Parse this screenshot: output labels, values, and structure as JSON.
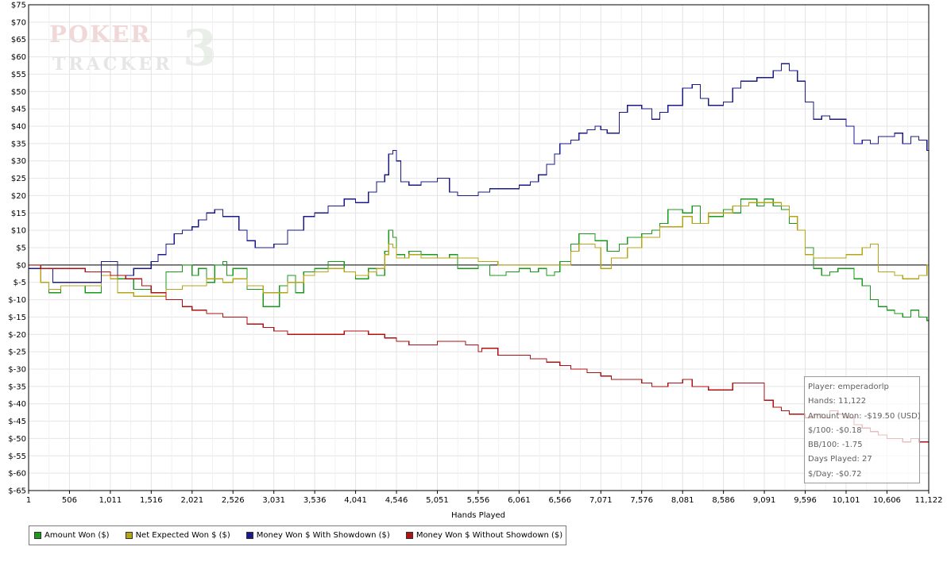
{
  "logo": {
    "word_top": "POKER",
    "word_bottom": "TRACKER",
    "numeral": "3"
  },
  "chart_data": {
    "type": "line",
    "xlabel": "Hands Played",
    "ylabel": "",
    "xlim": [
      1,
      11122
    ],
    "ylim": [
      -65,
      75
    ],
    "y_ticks": [
      75,
      70,
      65,
      60,
      55,
      50,
      45,
      40,
      35,
      30,
      25,
      20,
      15,
      10,
      5,
      0,
      -5,
      -10,
      -15,
      -20,
      -25,
      -30,
      -35,
      -40,
      -45,
      -50,
      -55,
      -60,
      -65
    ],
    "x_ticks": [
      1,
      506,
      1011,
      1516,
      2021,
      2526,
      3031,
      3536,
      4041,
      4546,
      5051,
      5556,
      6061,
      6566,
      7071,
      7576,
      8081,
      8586,
      9091,
      9596,
      10101,
      10606,
      11122
    ],
    "x_tick_labels": [
      "1",
      "506",
      "1,011",
      "1,516",
      "2,021",
      "2,526",
      "3,031",
      "3,536",
      "4,041",
      "4,546",
      "5,051",
      "5,556",
      "6,061",
      "6,566",
      "7,071",
      "7,576",
      "8,081",
      "8,586",
      "9,091",
      "9,596",
      "10,101",
      "10,606",
      "11,122"
    ],
    "grid": true,
    "legend_position": "bottom-left",
    "series": [
      {
        "name": "Amount Won ($)",
        "color": "#1a9a1a",
        "x": [
          1,
          150,
          250,
          400,
          600,
          700,
          900,
          1011,
          1100,
          1300,
          1516,
          1700,
          1900,
          2021,
          2100,
          2200,
          2300,
          2400,
          2450,
          2526,
          2700,
          2900,
          3031,
          3100,
          3200,
          3300,
          3400,
          3536,
          3700,
          3900,
          4041,
          4200,
          4300,
          4400,
          4450,
          4500,
          4546,
          4650,
          4700,
          4850,
          5051,
          5200,
          5300,
          5556,
          5700,
          5900,
          6061,
          6200,
          6300,
          6400,
          6500,
          6566,
          6700,
          6800,
          7000,
          7071,
          7150,
          7300,
          7400,
          7576,
          7700,
          7800,
          7900,
          8081,
          8200,
          8300,
          8400,
          8586,
          8700,
          8800,
          9000,
          9091,
          9200,
          9300,
          9400,
          9500,
          9596,
          9700,
          9800,
          9900,
          10000,
          10101,
          10200,
          10300,
          10400,
          10500,
          10606,
          10700,
          10800,
          10900,
          11000,
          11100,
          11122
        ],
        "y": [
          -1,
          -5,
          -8,
          -6,
          -6,
          -8,
          -2,
          -3,
          -4,
          -7,
          -8,
          -2,
          0,
          -3,
          -1,
          -5,
          0,
          1,
          -3,
          -1,
          -7,
          -12,
          -12,
          -6,
          -3,
          -8,
          -2,
          -1,
          1,
          -2,
          -4,
          -1,
          -3,
          4,
          10,
          8,
          3,
          2,
          4,
          3,
          2,
          3,
          -1,
          0,
          -3,
          -2,
          -1,
          -2,
          -1,
          -3,
          -2,
          1,
          6,
          9,
          7,
          7,
          4,
          6,
          8,
          9,
          10,
          12,
          16,
          15,
          17,
          12,
          14,
          16,
          15,
          19,
          17,
          19,
          17,
          16,
          12,
          10,
          5,
          -1,
          -3,
          -2,
          -1,
          -1,
          -4,
          -6,
          -10,
          -12,
          -13,
          -14,
          -15,
          -13,
          -15,
          -16,
          -19.5
        ]
      },
      {
        "name": "Net Expected Won $ ($)",
        "color": "#b4a516",
        "x": [
          1,
          150,
          250,
          400,
          600,
          700,
          900,
          1011,
          1100,
          1300,
          1516,
          1700,
          1900,
          2021,
          2200,
          2400,
          2526,
          2700,
          2900,
          3031,
          3200,
          3400,
          3536,
          3700,
          3900,
          4041,
          4200,
          4300,
          4400,
          4450,
          4500,
          4546,
          4700,
          4850,
          5051,
          5300,
          5556,
          5800,
          6061,
          6300,
          6566,
          6700,
          6800,
          7000,
          7071,
          7200,
          7400,
          7576,
          7800,
          8081,
          8200,
          8400,
          8586,
          8700,
          8900,
          9091,
          9300,
          9400,
          9500,
          9596,
          9700,
          9900,
          10101,
          10300,
          10400,
          10500,
          10606,
          10700,
          10800,
          11000,
          11100,
          11122
        ],
        "y": [
          -1,
          -5,
          -7,
          -6,
          -6,
          -6,
          -3,
          -4,
          -8,
          -9,
          -9,
          -7,
          -6,
          -6,
          -4,
          -5,
          -4,
          -6,
          -8,
          -8,
          -5,
          -3,
          -2,
          -1,
          -2,
          -3,
          -2,
          -1,
          3,
          6,
          5,
          2,
          3,
          2,
          2,
          2,
          1,
          0,
          0,
          0,
          0,
          4,
          6,
          5,
          -1,
          2,
          5,
          8,
          11,
          14,
          12,
          15,
          15,
          17,
          18,
          18,
          17,
          14,
          10,
          3,
          2,
          2,
          3,
          5,
          6,
          -2,
          -2,
          -3,
          -4,
          -3,
          0,
          -1.5
        ]
      },
      {
        "name": "Money Won $ With Showdown ($)",
        "color": "#1a1a8c",
        "x": [
          1,
          150,
          300,
          500,
          700,
          900,
          1011,
          1100,
          1300,
          1516,
          1600,
          1700,
          1800,
          1900,
          2021,
          2100,
          2200,
          2300,
          2400,
          2526,
          2600,
          2700,
          2800,
          3031,
          3200,
          3400,
          3536,
          3700,
          3900,
          4041,
          4200,
          4300,
          4400,
          4450,
          4500,
          4546,
          4600,
          4700,
          4850,
          5051,
          5200,
          5300,
          5556,
          5700,
          5900,
          6061,
          6200,
          6300,
          6400,
          6500,
          6566,
          6700,
          6800,
          6900,
          7000,
          7071,
          7150,
          7300,
          7400,
          7576,
          7700,
          7800,
          7900,
          8081,
          8200,
          8300,
          8400,
          8586,
          8700,
          8800,
          9000,
          9091,
          9200,
          9300,
          9400,
          9500,
          9596,
          9700,
          9800,
          9900,
          10000,
          10101,
          10200,
          10300,
          10400,
          10500,
          10606,
          10700,
          10800,
          10900,
          11000,
          11100,
          11122
        ],
        "y": [
          -1,
          -1,
          -5,
          -5,
          -5,
          1,
          1,
          -3,
          -1,
          1,
          3,
          6,
          9,
          10,
          11,
          13,
          15,
          16,
          14,
          14,
          10,
          7,
          5,
          6,
          10,
          14,
          15,
          17,
          19,
          18,
          21,
          24,
          26,
          32,
          33,
          30,
          24,
          23,
          24,
          25,
          21,
          20,
          21,
          22,
          22,
          23,
          24,
          26,
          29,
          32,
          35,
          36,
          38,
          39,
          40,
          39,
          38,
          44,
          46,
          45,
          42,
          44,
          46,
          51,
          52,
          48,
          46,
          47,
          51,
          53,
          54,
          54,
          56,
          58,
          56,
          53,
          47,
          42,
          43,
          42,
          42,
          40,
          35,
          36,
          35,
          37,
          37,
          38,
          35,
          37,
          36,
          33,
          31.5
        ]
      },
      {
        "name": "Money Won $ Without Showdown ($)",
        "color": "#b01212",
        "x": [
          1,
          150,
          300,
          500,
          700,
          900,
          1011,
          1200,
          1400,
          1516,
          1700,
          1900,
          2021,
          2200,
          2400,
          2526,
          2700,
          2900,
          3031,
          3200,
          3400,
          3536,
          3700,
          3900,
          4041,
          4200,
          4400,
          4546,
          4700,
          4850,
          5051,
          5200,
          5400,
          5556,
          5600,
          5800,
          6061,
          6200,
          6400,
          6566,
          6700,
          6900,
          7071,
          7200,
          7400,
          7576,
          7700,
          7900,
          8081,
          8200,
          8400,
          8586,
          8700,
          8900,
          9091,
          9200,
          9300,
          9400,
          9596,
          9700,
          9800,
          9900,
          10000,
          10101,
          10200,
          10300,
          10400,
          10500,
          10606,
          10700,
          10800,
          10900,
          11000,
          11122
        ],
        "y": [
          0,
          -1,
          -1,
          -1,
          -2,
          -2,
          -3,
          -4,
          -6,
          -8,
          -10,
          -12,
          -13,
          -14,
          -15,
          -15,
          -17,
          -18,
          -19,
          -20,
          -20,
          -20,
          -20,
          -19,
          -19,
          -20,
          -21,
          -22,
          -23,
          -23,
          -22,
          -22,
          -23,
          -25,
          -24,
          -26,
          -26,
          -27,
          -28,
          -29,
          -30,
          -31,
          -32,
          -33,
          -33,
          -34,
          -35,
          -34,
          -33,
          -35,
          -36,
          -36,
          -34,
          -34,
          -39,
          -41,
          -42,
          -43,
          -44,
          -43,
          -44,
          -42,
          -43,
          -44,
          -46,
          -47,
          -48,
          -49,
          -50,
          -50,
          -51,
          -50,
          -51,
          -51
        ]
      }
    ]
  },
  "legend": {
    "items": [
      {
        "label": "Amount Won ($)",
        "color": "#1a9a1a"
      },
      {
        "label": "Net Expected Won $ ($)",
        "color": "#b4a516"
      },
      {
        "label": "Money Won $ With Showdown ($)",
        "color": "#1a1a8c"
      },
      {
        "label": "Money Won $ Without Showdown ($)",
        "color": "#b01212"
      }
    ]
  },
  "info_box": {
    "player": "Player: emperadorlp",
    "hands": "Hands: 11,122",
    "amount_won": "Amount Won: -$19.50 (USD)",
    "per100": "$/100: -$0.18",
    "bb100": "BB/100: -1.75",
    "days_played": "Days Played: 27",
    "per_day": "$/Day: -$0.72"
  }
}
